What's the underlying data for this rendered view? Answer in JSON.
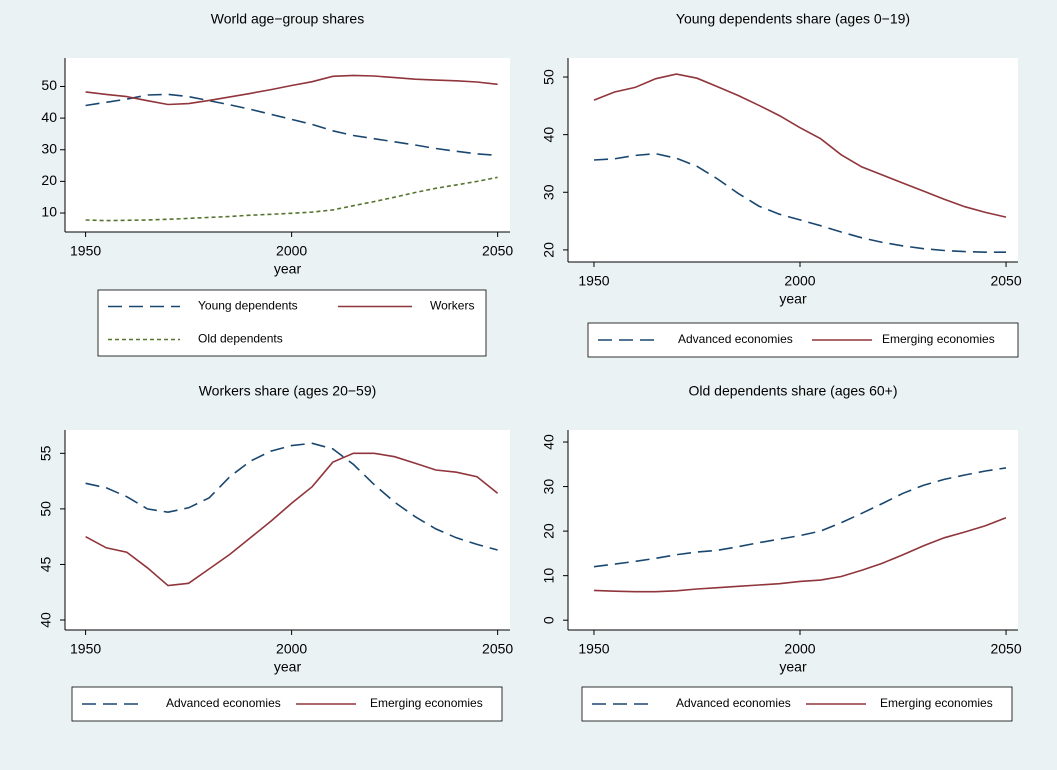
{
  "chart_data": [
    {
      "type": "line",
      "title": "World age−group shares",
      "x_label": "year",
      "x": [
        1950,
        1955,
        1960,
        1965,
        1970,
        1975,
        1980,
        1985,
        1990,
        1995,
        2000,
        2005,
        2010,
        2015,
        2020,
        2025,
        2030,
        2035,
        2040,
        2045,
        2050
      ],
      "xlim": [
        1945,
        2053
      ],
      "xticks": [
        1950,
        2000,
        2050
      ],
      "ylim": [
        4,
        59
      ],
      "yticks": [
        10,
        20,
        30,
        40,
        50
      ],
      "series": [
        {
          "name": "Young dependents",
          "color": "#1a476f",
          "style": "long-dash",
          "values": [
            44,
            45,
            46,
            47.3,
            47.5,
            46.8,
            45.5,
            44.2,
            42.8,
            41.2,
            39.6,
            38,
            36,
            34.5,
            33.5,
            32.5,
            31.5,
            30.4,
            29.5,
            28.7,
            28.2
          ]
        },
        {
          "name": "Workers",
          "color": "#90353b",
          "style": "solid",
          "values": [
            48.3,
            47.5,
            46.8,
            45.5,
            44.3,
            44.6,
            45.6,
            46.7,
            47.8,
            49,
            50.3,
            51.5,
            53.2,
            53.5,
            53.3,
            52.8,
            52.3,
            52,
            51.8,
            51.4,
            50.7
          ]
        },
        {
          "name": "Old dependents",
          "color": "#55752f",
          "style": "short-dash",
          "values": [
            7.8,
            7.6,
            7.7,
            7.8,
            8,
            8.3,
            8.6,
            8.9,
            9.3,
            9.6,
            9.9,
            10.3,
            11,
            12.3,
            13.6,
            15,
            16.5,
            17.8,
            18.9,
            20,
            21.3
          ]
        }
      ]
    },
    {
      "type": "line",
      "title": "Young dependents share (ages 0−19)",
      "x_label": "year",
      "x": [
        1950,
        1955,
        1960,
        1965,
        1970,
        1975,
        1980,
        1985,
        1990,
        1995,
        2000,
        2005,
        2010,
        2015,
        2020,
        2025,
        2030,
        2035,
        2040,
        2045,
        2050
      ],
      "xlim": [
        1943.7,
        2052.9
      ],
      "xticks": [
        1950,
        2000,
        2050
      ],
      "ylim": [
        17.9,
        53.3
      ],
      "yticks": [
        20,
        30,
        40,
        50
      ],
      "series": [
        {
          "name": "Advanced economies",
          "color": "#1a476f",
          "style": "long-dash",
          "values": [
            35.6,
            35.8,
            36.4,
            36.7,
            35.9,
            34.5,
            32.3,
            29.8,
            27.6,
            26.2,
            25.2,
            24.2,
            23.1,
            22.1,
            21.3,
            20.7,
            20.2,
            19.9,
            19.7,
            19.6,
            19.6
          ]
        },
        {
          "name": "Emerging economies",
          "color": "#90353b",
          "style": "solid",
          "values": [
            46,
            47.4,
            48.2,
            49.7,
            50.5,
            49.8,
            48.3,
            46.8,
            45.1,
            43.3,
            41.2,
            39.3,
            36.5,
            34.4,
            33,
            31.6,
            30.2,
            28.8,
            27.5,
            26.5,
            25.7
          ]
        }
      ]
    },
    {
      "type": "line",
      "title": "Workers share (ages 20−59)",
      "x_label": "year",
      "x": [
        1950,
        1955,
        1960,
        1965,
        1970,
        1975,
        1980,
        1985,
        1990,
        1995,
        2000,
        2005,
        2010,
        2015,
        2020,
        2025,
        2030,
        2035,
        2040,
        2045,
        2050
      ],
      "xlim": [
        1945,
        2053
      ],
      "xticks": [
        1950,
        2000,
        2050
      ],
      "ylim": [
        39.1,
        57.1
      ],
      "yticks": [
        40,
        45,
        50,
        55
      ],
      "series": [
        {
          "name": "Advanced economies",
          "color": "#1a476f",
          "style": "long-dash",
          "values": [
            52.3,
            51.9,
            51.1,
            50,
            49.7,
            50.1,
            51,
            52.9,
            54.3,
            55.2,
            55.7,
            55.9,
            55.4,
            54,
            52.2,
            50.6,
            49.3,
            48.2,
            47.4,
            46.8,
            46.3
          ]
        },
        {
          "name": "Emerging economies",
          "color": "#90353b",
          "style": "solid",
          "values": [
            47.5,
            46.5,
            46.1,
            44.7,
            43.1,
            43.3,
            44.6,
            45.9,
            47.4,
            48.9,
            50.5,
            52,
            54.2,
            55,
            55,
            54.7,
            54.1,
            53.5,
            53.3,
            52.9,
            51.4
          ]
        }
      ]
    },
    {
      "type": "line",
      "title": "Old dependents share (ages 60+)",
      "x_label": "year",
      "x": [
        1950,
        1955,
        1960,
        1965,
        1970,
        1975,
        1980,
        1985,
        1990,
        1995,
        2000,
        2005,
        2010,
        2015,
        2020,
        2025,
        2030,
        2035,
        2040,
        2045,
        2050
      ],
      "xlim": [
        1943.7,
        2052.9
      ],
      "xticks": [
        1950,
        2000,
        2050
      ],
      "ylim": [
        -2.2,
        42.7
      ],
      "yticks": [
        0,
        10,
        20,
        30,
        40
      ],
      "series": [
        {
          "name": "Advanced economies",
          "color": "#1a476f",
          "style": "long-dash",
          "values": [
            12,
            12.6,
            13.2,
            13.9,
            14.7,
            15.3,
            15.7,
            16.5,
            17.4,
            18.2,
            19,
            20,
            21.9,
            24,
            26.2,
            28.5,
            30.3,
            31.6,
            32.6,
            33.5,
            34.2
          ]
        },
        {
          "name": "Emerging economies",
          "color": "#90353b",
          "style": "solid",
          "values": [
            6.7,
            6.5,
            6.4,
            6.4,
            6.6,
            7,
            7.3,
            7.6,
            7.9,
            8.2,
            8.7,
            9,
            9.8,
            11.2,
            12.8,
            14.7,
            16.7,
            18.5,
            19.8,
            21.2,
            23
          ]
        }
      ]
    }
  ]
}
